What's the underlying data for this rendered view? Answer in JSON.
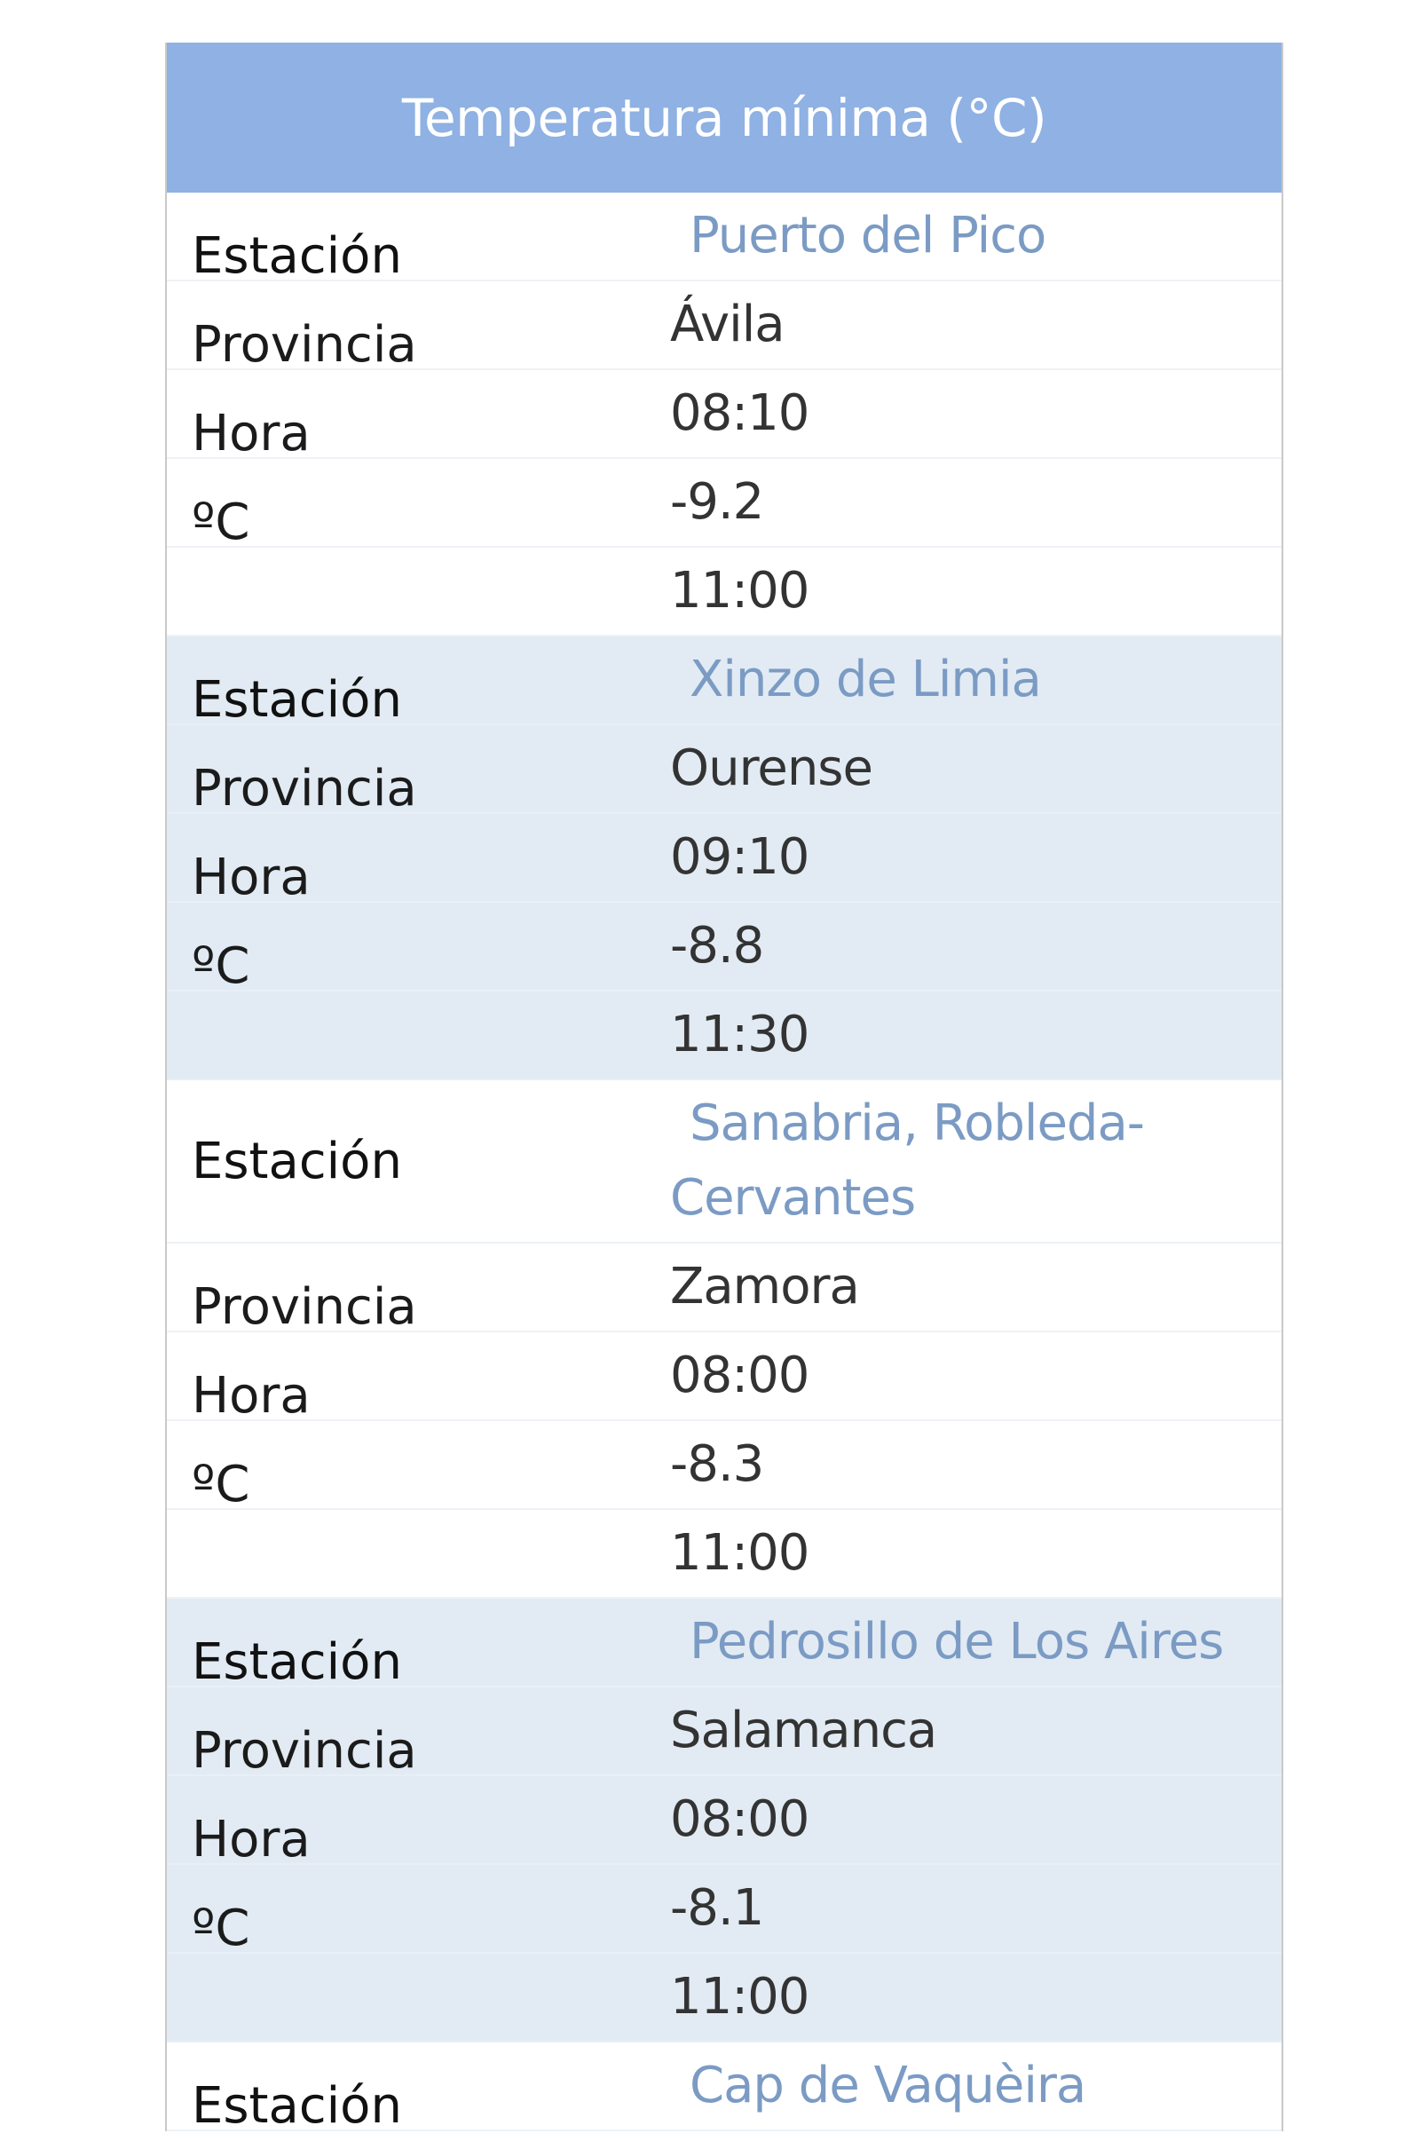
{
  "title": "Temperatura mínima (°C)",
  "labels": {
    "station": "Estación",
    "province": "Provincia",
    "time": "Hora",
    "temp": "ºC"
  },
  "colors": {
    "header_bg": "#8fb1e3",
    "station_text": "#7b9bc4",
    "alt_row_bg": "#e2ebf3"
  },
  "stations": [
    {
      "name": "Puerto del Pico",
      "province": "Ávila",
      "time": "08:10",
      "temp": "-9.2",
      "updated": "11:00"
    },
    {
      "name": "Xinzo de Limia",
      "province": "Ourense",
      "time": "09:10",
      "temp": "-8.8",
      "updated": "11:30"
    },
    {
      "name": "Sanabria, Robleda-Cervantes",
      "province": "Zamora",
      "time": "08:00",
      "temp": "-8.3",
      "updated": "11:00"
    },
    {
      "name": "Pedrosillo de Los Aires",
      "province": "Salamanca",
      "time": "08:00",
      "temp": "-8.1",
      "updated": "11:00"
    },
    {
      "name": "Cap de Vaquèira"
    }
  ]
}
